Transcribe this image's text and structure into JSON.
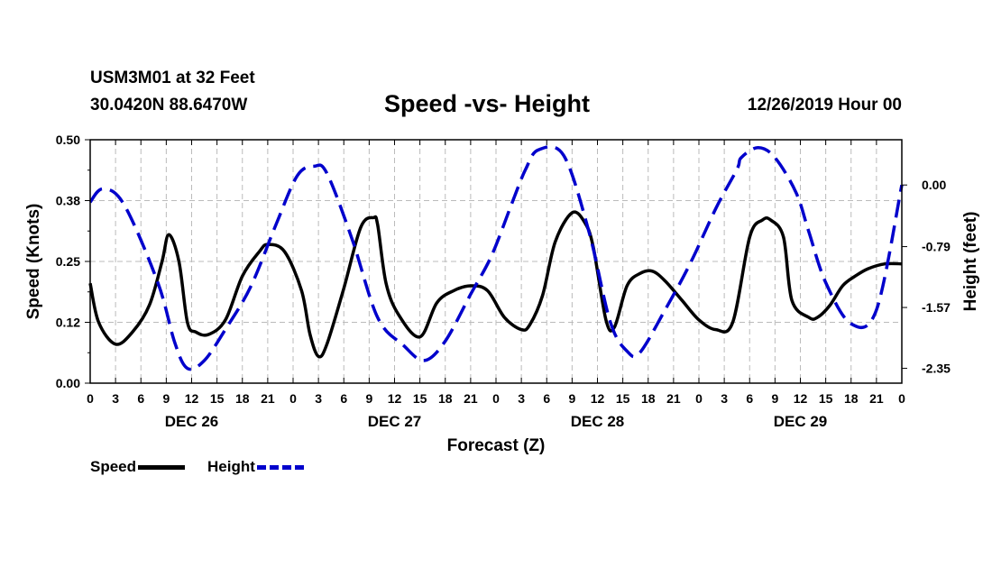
{
  "header": {
    "station": "USM3M01 at 32 Feet",
    "location": "30.0420N 88.6470W",
    "title": "Speed -vs- Height",
    "datetime": "12/26/2019 Hour 00"
  },
  "legend": {
    "speed_label": "Speed",
    "height_label": "Height"
  },
  "colors": {
    "speed": "#000000",
    "height": "#0000cc",
    "grid": "#bbbbbb"
  },
  "chart_data": {
    "type": "line",
    "title": "Speed -vs- Height",
    "xlabel": "Forecast (Z)",
    "ylabel": "Speed (Knots)",
    "y2label": "Height (feet)",
    "x_range_hours": [
      0,
      96
    ],
    "ylim": [
      0,
      0.5
    ],
    "y2lim": [
      -2.54,
      0.58
    ],
    "grid": true,
    "legend_position": "bottom-left",
    "x_tick_labels": [
      "0",
      "3",
      "6",
      "9",
      "12",
      "15",
      "18",
      "21",
      "0",
      "3",
      "6",
      "9",
      "12",
      "15",
      "18",
      "21",
      "0",
      "3",
      "6",
      "9",
      "12",
      "15",
      "18",
      "21",
      "0",
      "3",
      "6",
      "9",
      "12",
      "15",
      "18",
      "21",
      "0"
    ],
    "day_labels": [
      "DEC 26",
      "DEC 27",
      "DEC 28",
      "DEC 29"
    ],
    "y_tick_labels": [
      "0.00",
      "0.12",
      "0.25",
      "0.38",
      "0.50"
    ],
    "y_tick_values": [
      0,
      0.125,
      0.25,
      0.375,
      0.5
    ],
    "y2_tick_labels": [
      "-2.35",
      "-1.57",
      "-0.79",
      "0.00"
    ],
    "y2_tick_values": [
      -2.35,
      -1.57,
      -0.79,
      0.0
    ],
    "series": [
      {
        "name": "Speed",
        "axis": "left",
        "style": "solid",
        "x": [
          0,
          1,
          3,
          5,
          7,
          8.5,
          9.3,
          10.5,
          11.5,
          12.5,
          14,
          16,
          18,
          20,
          21,
          23,
          25,
          26,
          27,
          28,
          30,
          32,
          33.5,
          34,
          35,
          36.5,
          39,
          41,
          43,
          45,
          47,
          49,
          51,
          52,
          53.5,
          55,
          57,
          58.5,
          59.5,
          61,
          62,
          63.5,
          65,
          66.5,
          68,
          70,
          72,
          74,
          76,
          78,
          79.5,
          80.5,
          82,
          83,
          85,
          86,
          87.5,
          89,
          90.5,
          92,
          94,
          96
        ],
        "values": [
          0.205,
          0.125,
          0.08,
          0.105,
          0.16,
          0.25,
          0.305,
          0.25,
          0.125,
          0.105,
          0.1,
          0.13,
          0.22,
          0.27,
          0.285,
          0.27,
          0.19,
          0.1,
          0.055,
          0.08,
          0.195,
          0.32,
          0.34,
          0.325,
          0.205,
          0.14,
          0.095,
          0.165,
          0.19,
          0.2,
          0.19,
          0.135,
          0.11,
          0.12,
          0.18,
          0.29,
          0.35,
          0.33,
          0.28,
          0.13,
          0.115,
          0.2,
          0.225,
          0.23,
          0.21,
          0.17,
          0.13,
          0.11,
          0.125,
          0.3,
          0.335,
          0.335,
          0.3,
          0.17,
          0.135,
          0.135,
          0.16,
          0.2,
          0.22,
          0.235,
          0.245,
          0.245
        ]
      },
      {
        "name": "Height",
        "axis": "right",
        "style": "dashed",
        "x": [
          0,
          1.5,
          4,
          8,
          10,
          11.5,
          13.5,
          16,
          19,
          22,
          24.5,
          26.5,
          28,
          31,
          34,
          37,
          39.5,
          42,
          45,
          47.5,
          50,
          51.5,
          53,
          56,
          59,
          61.5,
          63.5,
          65,
          68,
          71,
          74,
          76.5,
          77,
          79,
          81,
          83.5,
          85,
          87,
          90,
          93,
          96
        ],
        "values": [
          -0.22,
          -0.05,
          -0.25,
          -1.25,
          -2.02,
          -2.35,
          -2.25,
          -1.85,
          -1.3,
          -0.5,
          0.12,
          0.24,
          0.15,
          -0.7,
          -1.7,
          -2.05,
          -2.25,
          -2.0,
          -1.4,
          -0.9,
          -0.2,
          0.2,
          0.45,
          0.38,
          -0.6,
          -1.75,
          -2.13,
          -2.15,
          -1.6,
          -1.0,
          -0.3,
          0.2,
          0.35,
          0.48,
          0.35,
          -0.1,
          -0.6,
          -1.25,
          -1.78,
          -1.6,
          0.0
        ]
      }
    ]
  }
}
